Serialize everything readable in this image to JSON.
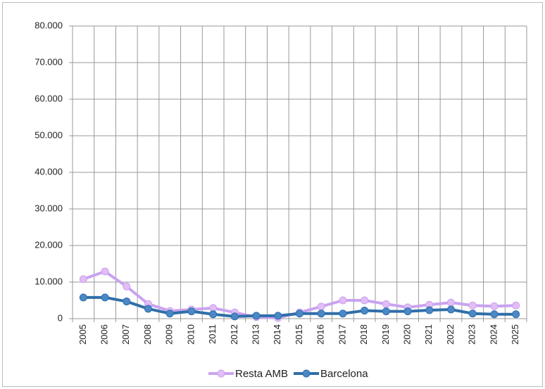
{
  "chart_data": {
    "type": "line",
    "categories": [
      "2005",
      "2006",
      "2007",
      "2008",
      "2009",
      "2010",
      "2011",
      "2012",
      "2013",
      "2014",
      "2015",
      "2016",
      "2017",
      "2018",
      "2019",
      "2020",
      "2021",
      "2022",
      "2023",
      "2024",
      "2025"
    ],
    "series": [
      {
        "name": "Resta AMB",
        "color": "#c9a3f0",
        "marker_color": "#e2bdf6",
        "values": [
          10800,
          12900,
          8800,
          4000,
          2100,
          2500,
          2900,
          1700,
          400,
          200,
          1700,
          3300,
          5000,
          5000,
          4000,
          3100,
          3800,
          4400,
          3600,
          3400,
          3600
        ]
      },
      {
        "name": "Barcelona",
        "color": "#2f6ea8",
        "marker_color": "#4b88c7",
        "values": [
          5800,
          5800,
          4700,
          2700,
          1400,
          2000,
          1200,
          600,
          800,
          800,
          1400,
          1400,
          1400,
          2200,
          2000,
          2000,
          2300,
          2500,
          1400,
          1200,
          1200
        ]
      }
    ],
    "ylim": [
      0,
      80000
    ],
    "yticks": [
      0,
      {
        "value": 10000,
        "label": "10.000"
      },
      {
        "value": 20000,
        "label": "20.000"
      },
      {
        "value": 30000,
        "label": "30.000"
      },
      {
        "value": 40000,
        "label": "40.000"
      },
      {
        "value": 50000,
        "label": "50.000"
      },
      {
        "value": 60000,
        "label": "60.000"
      },
      {
        "value": 70000,
        "label": "70.000"
      },
      {
        "value": 80000,
        "label": "80.000"
      }
    ],
    "grid": true,
    "legend": "bottom"
  }
}
